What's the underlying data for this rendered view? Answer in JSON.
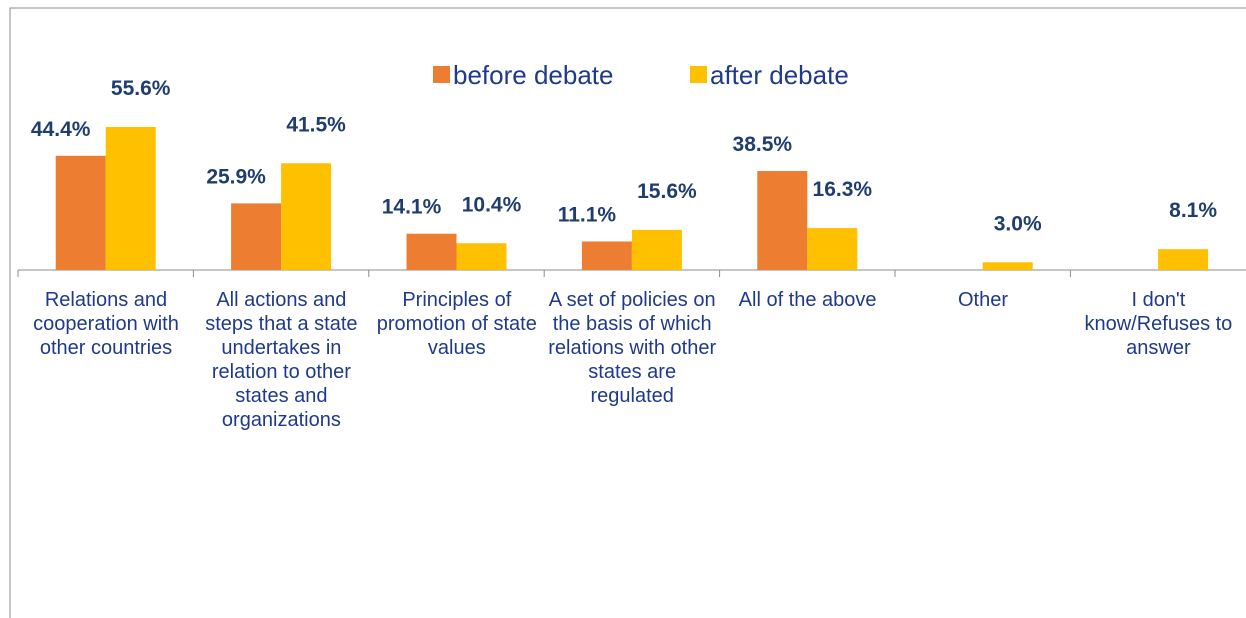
{
  "chart_data": {
    "type": "bar",
    "categories": [
      "Relations and cooperation with other countries",
      "All actions and steps that a state undertakes in relation to other states and organizations",
      "Principles of promotion of state values",
      "A set of policies on the basis of which relations with other states are regulated",
      "All of the above",
      "Other",
      "I don't know/Refuses to answer"
    ],
    "series": [
      {
        "name": "before debate",
        "color": "#ed7d31",
        "values": [
          44.4,
          25.9,
          14.1,
          11.1,
          38.5,
          null,
          null
        ],
        "value_labels": [
          "44.4%",
          "25.9%",
          "14.1%",
          "11.1%",
          "38.5%",
          null,
          null
        ]
      },
      {
        "name": "after debate",
        "color": "#ffc000",
        "values": [
          55.6,
          41.5,
          10.4,
          15.6,
          16.3,
          3.0,
          8.1
        ],
        "value_labels": [
          "55.6%",
          "41.5%",
          "10.4%",
          "15.6%",
          "16.3%",
          "3.0%",
          "8.1%"
        ]
      }
    ],
    "legend": "top"
  }
}
